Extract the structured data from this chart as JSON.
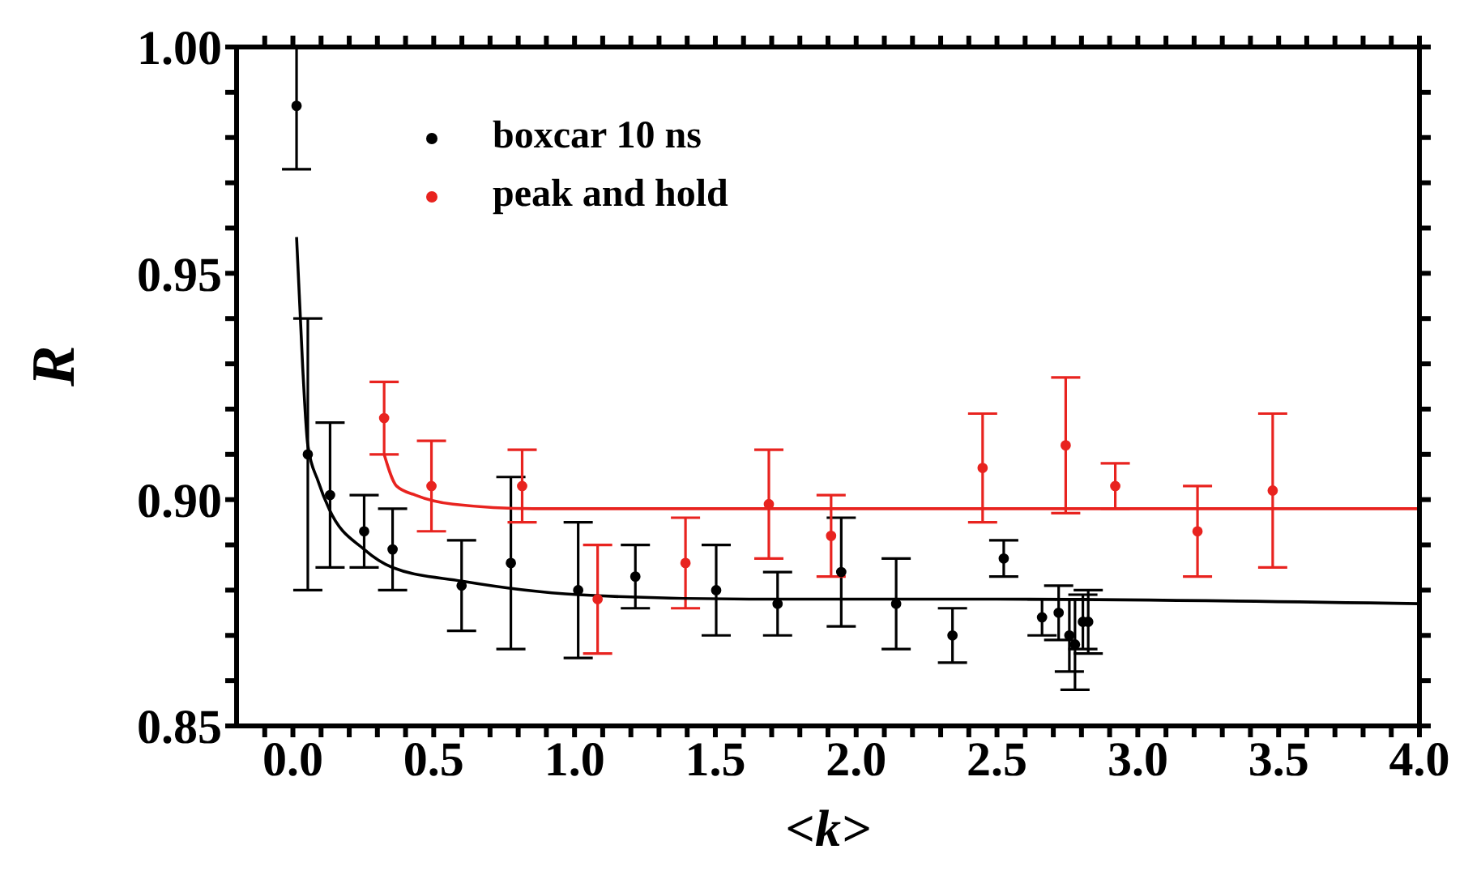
{
  "chart_data": {
    "type": "scatter",
    "xlabel": "<k>",
    "ylabel": "R",
    "xlim": [
      -0.2,
      4.0
    ],
    "ylim": [
      0.85,
      1.0
    ],
    "xticks": [
      {
        "value": -0.1,
        "label": null
      },
      {
        "value": 0,
        "label": "0.0"
      },
      {
        "value": 0.1,
        "label": null
      },
      {
        "value": 0.2,
        "label": null
      },
      {
        "value": 0.3,
        "label": null
      },
      {
        "value": 0.4,
        "label": null
      },
      {
        "value": 0.5,
        "label": "0.5"
      },
      {
        "value": 0.6,
        "label": null
      },
      {
        "value": 0.7,
        "label": null
      },
      {
        "value": 0.8,
        "label": null
      },
      {
        "value": 0.9,
        "label": null
      },
      {
        "value": 1,
        "label": "1.0"
      },
      {
        "value": 1.1,
        "label": null
      },
      {
        "value": 1.2,
        "label": null
      },
      {
        "value": 1.3,
        "label": null
      },
      {
        "value": 1.4,
        "label": null
      },
      {
        "value": 1.5,
        "label": "1.5"
      },
      {
        "value": 1.6,
        "label": null
      },
      {
        "value": 1.7,
        "label": null
      },
      {
        "value": 1.8,
        "label": null
      },
      {
        "value": 1.9,
        "label": null
      },
      {
        "value": 2,
        "label": "2.0"
      },
      {
        "value": 2.1,
        "label": null
      },
      {
        "value": 2.2,
        "label": null
      },
      {
        "value": 2.3,
        "label": null
      },
      {
        "value": 2.4,
        "label": null
      },
      {
        "value": 2.5,
        "label": "2.5"
      },
      {
        "value": 2.6,
        "label": null
      },
      {
        "value": 2.7,
        "label": null
      },
      {
        "value": 2.8,
        "label": null
      },
      {
        "value": 2.9,
        "label": null
      },
      {
        "value": 3,
        "label": "3.0"
      },
      {
        "value": 3.1,
        "label": null
      },
      {
        "value": 3.2,
        "label": null
      },
      {
        "value": 3.3,
        "label": null
      },
      {
        "value": 3.4,
        "label": null
      },
      {
        "value": 3.5,
        "label": "3.5"
      },
      {
        "value": 3.6,
        "label": null
      },
      {
        "value": 3.7,
        "label": null
      },
      {
        "value": 3.8,
        "label": null
      },
      {
        "value": 3.9,
        "label": null
      },
      {
        "value": 4,
        "label": "4.0"
      }
    ],
    "yticks": [
      {
        "value": 0.85,
        "label": "0.85"
      },
      {
        "value": 0.86,
        "label": null
      },
      {
        "value": 0.87,
        "label": null
      },
      {
        "value": 0.88,
        "label": null
      },
      {
        "value": 0.89,
        "label": null
      },
      {
        "value": 0.9,
        "label": "0.90"
      },
      {
        "value": 0.91,
        "label": null
      },
      {
        "value": 0.92,
        "label": null
      },
      {
        "value": 0.93,
        "label": null
      },
      {
        "value": 0.94,
        "label": null
      },
      0.95,
      {
        "value": 0.96,
        "label": null
      },
      {
        "value": 0.97,
        "label": null
      },
      {
        "value": 0.98,
        "label": null
      },
      {
        "value": 0.99,
        "label": null
      },
      {
        "value": 1,
        "label": "1.00"
      }
    ],
    "legend": "top left",
    "marker": "circle",
    "series": [
      {
        "name": "boxcar 10 ns",
        "color": "#000000",
        "x": [
          0.013,
          0.053,
          0.132,
          0.253,
          0.354,
          0.599,
          0.774,
          1.013,
          1.216,
          1.503,
          1.721,
          1.947,
          2.142,
          2.342,
          2.524,
          2.66,
          2.719,
          2.757,
          2.777,
          2.805,
          2.824
        ],
        "values": [
          0.987,
          0.91,
          0.901,
          0.893,
          0.889,
          0.881,
          0.886,
          0.88,
          0.883,
          0.88,
          0.877,
          0.884,
          0.877,
          0.87,
          0.887,
          0.874,
          0.875,
          0.87,
          0.868,
          0.873,
          0.873
        ],
        "errors": [
          [
            0.973,
            1.0
          ],
          0.03,
          0.016,
          0.008,
          0.009,
          0.01,
          0.019,
          0.015,
          0.007,
          0.01,
          0.007,
          0.012,
          0.01,
          0.006,
          0.004,
          0.004,
          0.006,
          0.008,
          0.01,
          0.006,
          0.007
        ]
      },
      {
        "name": "peak and hold",
        "color": "#e8231f",
        "x": [
          0.324,
          0.492,
          0.814,
          1.082,
          1.394,
          1.69,
          1.911,
          2.449,
          2.744,
          2.92,
          3.212,
          3.479
        ],
        "values": [
          0.918,
          0.903,
          0.903,
          0.878,
          0.886,
          0.899,
          0.892,
          0.907,
          0.912,
          0.903,
          0.893,
          0.902
        ],
        "errors": [
          0.008,
          0.01,
          0.008,
          0.012,
          0.01,
          0.012,
          0.009,
          0.012,
          0.015,
          0.005,
          0.01,
          0.017
        ]
      },
      {
        "color": "#000000",
        "type": "line",
        "marker": "none",
        "x": [
          0.013,
          0.035,
          0.053,
          0.09,
          0.128,
          0.253,
          0.354,
          0.6,
          1.013,
          1.62,
          2.5,
          4.0
        ],
        "values": [
          0.958,
          0.929,
          0.912,
          0.904,
          0.898,
          0.889,
          0.885,
          0.882,
          0.879,
          0.878,
          0.878,
          0.877
        ]
      },
      {
        "color": "#e8231f",
        "type": "line",
        "marker": "none",
        "x": [
          0.324,
          0.368,
          0.435,
          0.568,
          0.855,
          1.5,
          4.0
        ],
        "values": [
          0.91,
          0.903,
          0.901,
          0.899,
          0.898,
          0.898,
          0.898
        ]
      }
    ]
  }
}
